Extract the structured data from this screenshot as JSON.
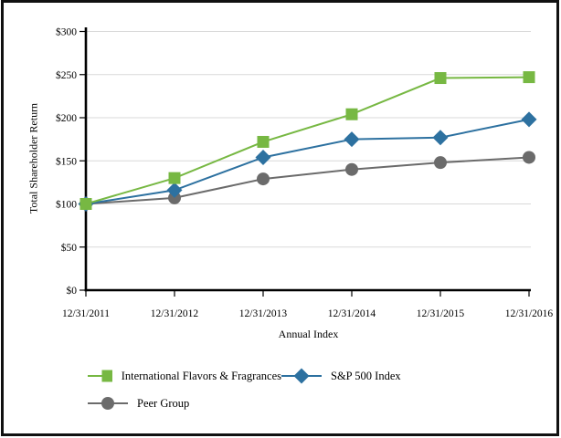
{
  "figure": {
    "background": "#ffffff",
    "border_color": "#111111",
    "gridline_color": "#d9d9d9",
    "axis_color": "#000000"
  },
  "chart_data": {
    "type": "line",
    "title": "",
    "xlabel": "Annual Index",
    "ylabel": "Total Shareholder Return",
    "categories": [
      "12/31/2011",
      "12/31/2012",
      "12/31/2013",
      "12/31/2014",
      "12/31/2015",
      "12/31/2016"
    ],
    "series": [
      {
        "name": "International Flavors & Fragrances",
        "marker": "square",
        "color": "#77b843",
        "values": [
          100,
          130,
          172,
          204,
          246,
          247
        ]
      },
      {
        "name": "S&P 500 Index",
        "marker": "diamond",
        "color": "#2d71a0",
        "values": [
          100,
          116,
          154,
          175,
          177,
          198
        ]
      },
      {
        "name": "Peer Group",
        "marker": "circle",
        "color": "#6b6b6b",
        "values": [
          100,
          107,
          129,
          140,
          148,
          154
        ]
      }
    ],
    "y_axis": {
      "min": 0,
      "max": 300,
      "step": 50,
      "tick_prefix": "$"
    },
    "y_tick_labels": [
      "$0",
      "$50",
      "$100",
      "$150",
      "$200",
      "$250",
      "$300"
    ],
    "grid": true,
    "legend_position": "bottom"
  }
}
